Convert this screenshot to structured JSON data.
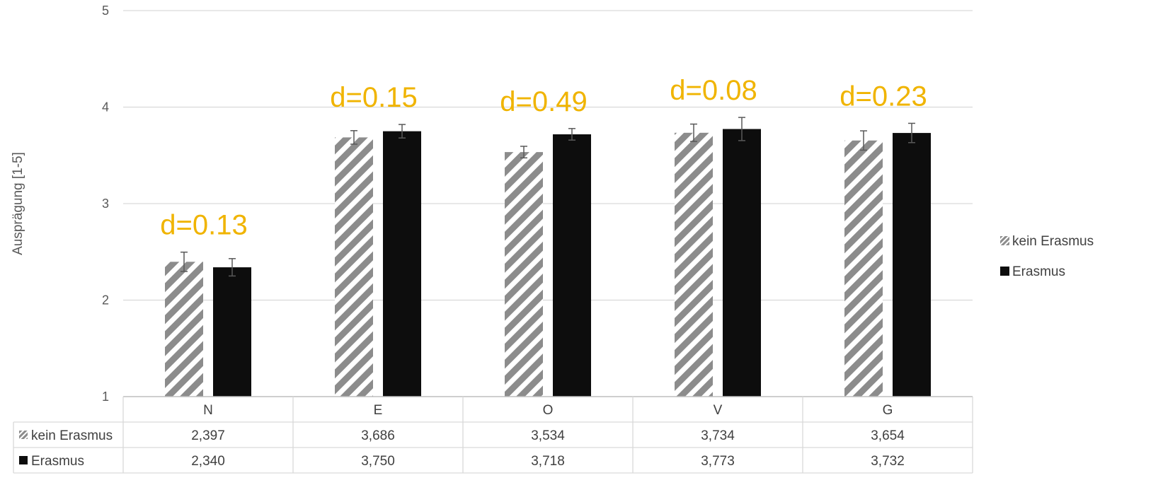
{
  "chart_data": {
    "type": "bar",
    "ylabel": "Ausprägung [1-5]",
    "ylim": [
      1,
      5
    ],
    "yticks": [
      1,
      2,
      3,
      4,
      5
    ],
    "grid": true,
    "legend_position": "right",
    "categories": [
      "N",
      "E",
      "O",
      "V",
      "G"
    ],
    "series": [
      {
        "name": "kein Erasmus",
        "pattern": "diagonal-stripes",
        "color": "#8c8c8c",
        "values": [
          2.397,
          3.686,
          3.534,
          3.734,
          3.654
        ],
        "error": [
          0.1,
          0.07,
          0.06,
          0.09,
          0.1
        ]
      },
      {
        "name": "Erasmus",
        "pattern": "solid",
        "color": "#0d0d0d",
        "values": [
          2.34,
          3.75,
          3.718,
          3.773,
          3.732
        ],
        "error": [
          0.09,
          0.07,
          0.06,
          0.12,
          0.1
        ]
      }
    ],
    "annotations": [
      "d=0.13",
      "d=0.15",
      "d=0.49",
      "d=0.08",
      "d=0.23"
    ],
    "annotation_color": "#f0b400",
    "data_table": {
      "rows": [
        {
          "label": "kein Erasmus",
          "cells": [
            "2,397",
            "3,686",
            "3,534",
            "3,734",
            "3,654"
          ]
        },
        {
          "label": "Erasmus",
          "cells": [
            "2,340",
            "3,750",
            "3,718",
            "3,773",
            "3,732"
          ]
        }
      ]
    }
  }
}
